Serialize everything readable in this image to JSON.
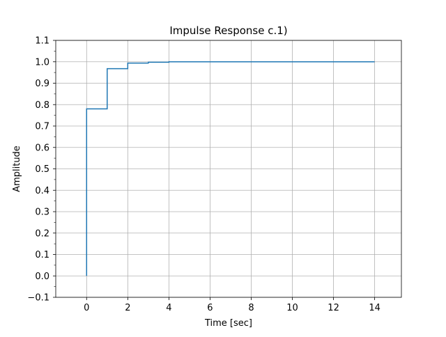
{
  "chart_data": {
    "type": "line",
    "step": "post",
    "title": "Impulse Response c.1)",
    "xlabel": "Time [sec]",
    "ylabel": "Amplitude",
    "xlim": [
      -1.5,
      15.3
    ],
    "ylim": [
      -0.1,
      1.1
    ],
    "xticks": [
      0,
      2,
      4,
      6,
      8,
      10,
      12,
      14
    ],
    "xtick_labels": [
      "0",
      "2",
      "4",
      "6",
      "8",
      "10",
      "12",
      "14"
    ],
    "yticks": [
      -0.1,
      0.0,
      0.1,
      0.2,
      0.3,
      0.4,
      0.5,
      0.6,
      0.7,
      0.8,
      0.9,
      1.0,
      1.1
    ],
    "ytick_labels": [
      "−0.1",
      "0.0",
      "0.1",
      "0.2",
      "0.3",
      "0.4",
      "0.5",
      "0.6",
      "0.7",
      "0.8",
      "0.9",
      "1.0",
      "1.1"
    ],
    "yminor_step": 0.05,
    "grid": true,
    "series": [
      {
        "color": "#1f77b4",
        "x": [
          0,
          0,
          1,
          2,
          3,
          4,
          5,
          6,
          7,
          8,
          9,
          10,
          11,
          12,
          13,
          14
        ],
        "y": [
          0.0,
          0.78,
          0.968,
          0.994,
          0.998,
          1.0,
          1.0,
          1.0,
          1.0,
          1.0,
          1.0,
          1.0,
          1.0,
          1.0,
          1.0,
          1.0
        ]
      }
    ]
  }
}
